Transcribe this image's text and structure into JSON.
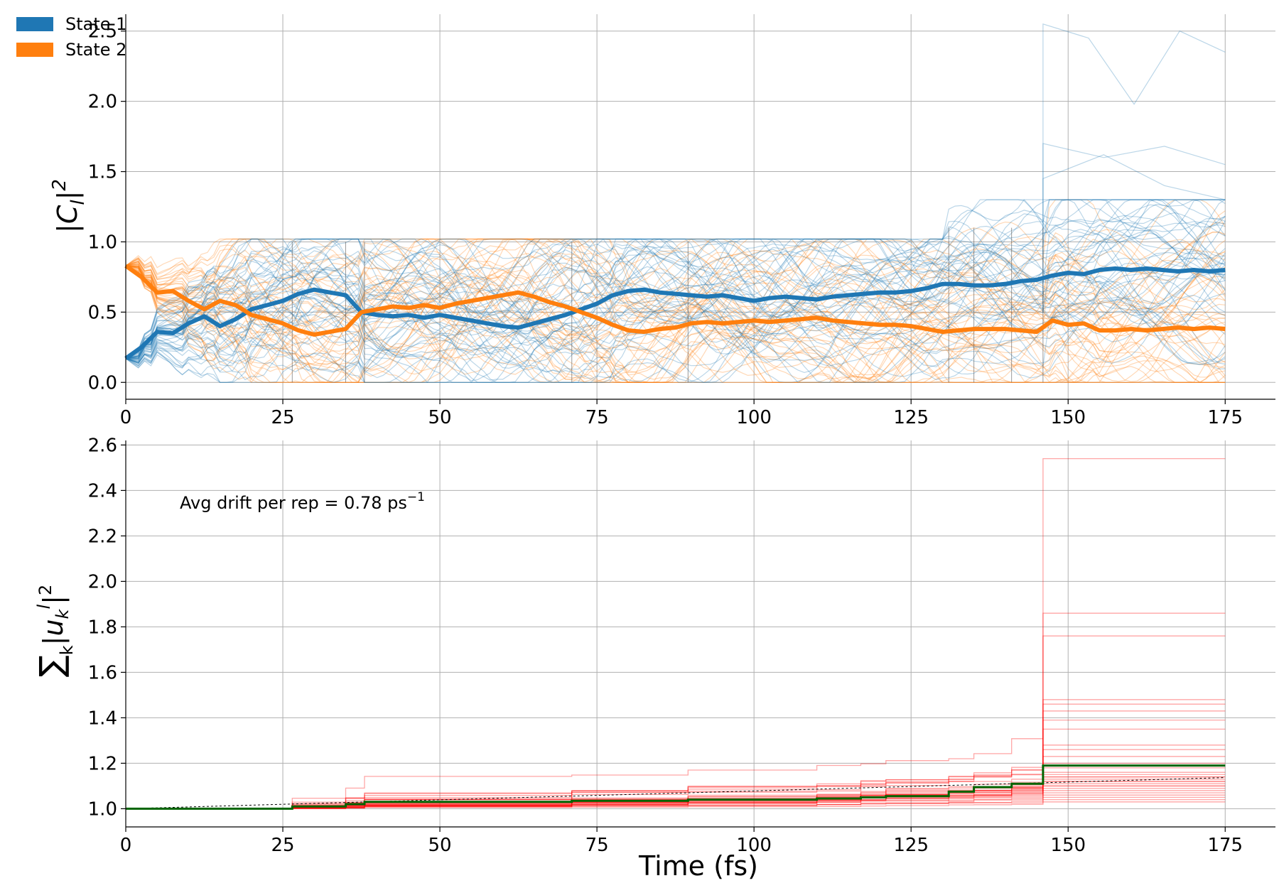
{
  "chart_data": [
    {
      "type": "line",
      "ylabel": "|C_l|^2",
      "xlim": [
        0,
        183
      ],
      "ylim": [
        -0.12,
        2.62
      ],
      "xticks": [
        0,
        25,
        50,
        75,
        100,
        125,
        150,
        175
      ],
      "yticks": [
        0.0,
        0.5,
        1.0,
        1.5,
        2.0,
        2.5
      ],
      "yticklabels": [
        "0.0",
        "0.5",
        "1.0",
        "1.5",
        "2.0",
        "2.5"
      ],
      "grid": true,
      "legend": {
        "placement": "top-left",
        "entries": [
          {
            "label": "State 1",
            "color": "#1f77b4"
          },
          {
            "label": "State 2",
            "color": "#ff7f0e"
          }
        ]
      },
      "x": [
        0,
        2.5,
        5,
        7.5,
        10,
        12.5,
        15,
        17.5,
        20,
        22.5,
        25,
        27.5,
        30,
        32.5,
        35,
        37.5,
        40,
        42.5,
        45,
        47.5,
        50,
        52.5,
        55,
        57.5,
        60,
        62.5,
        65,
        67.5,
        70,
        72.5,
        75,
        77.5,
        80,
        82.5,
        85,
        87.5,
        90,
        92.5,
        95,
        97.5,
        100,
        102.5,
        105,
        107.5,
        110,
        112.5,
        115,
        117.5,
        120,
        122.5,
        125,
        127.5,
        130,
        132.5,
        135,
        137.5,
        140,
        142.5,
        145,
        147.5,
        150,
        152.5,
        155,
        157.5,
        160,
        162.5,
        165,
        167.5,
        170,
        172.5,
        175
      ],
      "series": [
        {
          "name": "State 1",
          "color": "#1f77b4",
          "values": [
            0.17,
            0.25,
            0.36,
            0.35,
            0.42,
            0.47,
            0.4,
            0.45,
            0.52,
            0.55,
            0.58,
            0.63,
            0.66,
            0.64,
            0.62,
            0.5,
            0.48,
            0.47,
            0.48,
            0.46,
            0.48,
            0.46,
            0.44,
            0.42,
            0.4,
            0.39,
            0.42,
            0.45,
            0.48,
            0.52,
            0.56,
            0.62,
            0.65,
            0.66,
            0.64,
            0.63,
            0.62,
            0.61,
            0.62,
            0.6,
            0.58,
            0.6,
            0.61,
            0.6,
            0.59,
            0.61,
            0.62,
            0.63,
            0.64,
            0.64,
            0.65,
            0.67,
            0.7,
            0.7,
            0.69,
            0.69,
            0.7,
            0.72,
            0.73,
            0.76,
            0.78,
            0.77,
            0.8,
            0.81,
            0.8,
            0.81,
            0.8,
            0.79,
            0.8,
            0.79,
            0.8
          ]
        },
        {
          "name": "State 2",
          "color": "#ff7f0e",
          "values": [
            0.83,
            0.75,
            0.64,
            0.65,
            0.58,
            0.52,
            0.58,
            0.55,
            0.48,
            0.45,
            0.42,
            0.37,
            0.34,
            0.36,
            0.38,
            0.5,
            0.52,
            0.54,
            0.53,
            0.55,
            0.53,
            0.56,
            0.58,
            0.6,
            0.62,
            0.64,
            0.61,
            0.57,
            0.54,
            0.5,
            0.46,
            0.41,
            0.37,
            0.36,
            0.38,
            0.39,
            0.42,
            0.43,
            0.42,
            0.43,
            0.44,
            0.43,
            0.44,
            0.45,
            0.46,
            0.44,
            0.43,
            0.42,
            0.41,
            0.41,
            0.4,
            0.38,
            0.36,
            0.37,
            0.38,
            0.38,
            0.38,
            0.37,
            0.36,
            0.44,
            0.41,
            0.42,
            0.37,
            0.37,
            0.38,
            0.37,
            0.38,
            0.39,
            0.38,
            0.39,
            0.38
          ]
        }
      ]
    },
    {
      "type": "line",
      "xlabel": "Time (fs)",
      "ylabel": "∑_k |u_k^l|^2",
      "xlim": [
        0,
        183
      ],
      "ylim": [
        0.92,
        2.62
      ],
      "xticks": [
        0,
        25,
        50,
        75,
        100,
        125,
        150,
        175
      ],
      "yticks": [
        1.0,
        1.2,
        1.4,
        1.6,
        1.8,
        2.0,
        2.2,
        2.4,
        2.6
      ],
      "yticklabels": [
        "1.0",
        "1.2",
        "1.4",
        "1.6",
        "1.8",
        "2.0",
        "2.2",
        "2.4",
        "2.6"
      ],
      "grid": true,
      "annotation": {
        "text": "Avg drift per rep = 0.78 ps",
        "superscript": "−1"
      },
      "mean_series": {
        "color": "#006400",
        "points": [
          [
            0,
            1.0
          ],
          [
            26.5,
            1.0
          ],
          [
            26.5,
            1.01
          ],
          [
            35,
            1.01
          ],
          [
            35,
            1.02
          ],
          [
            38,
            1.02
          ],
          [
            38,
            1.03
          ],
          [
            71,
            1.03
          ],
          [
            71,
            1.035
          ],
          [
            89.5,
            1.035
          ],
          [
            89.5,
            1.04
          ],
          [
            110,
            1.04
          ],
          [
            110,
            1.045
          ],
          [
            117,
            1.045
          ],
          [
            117,
            1.05
          ],
          [
            121,
            1.05
          ],
          [
            121,
            1.055
          ],
          [
            131,
            1.055
          ],
          [
            131,
            1.075
          ],
          [
            135,
            1.075
          ],
          [
            135,
            1.095
          ],
          [
            141,
            1.095
          ],
          [
            141,
            1.11
          ],
          [
            146,
            1.11
          ],
          [
            146,
            1.19
          ],
          [
            175,
            1.19
          ]
        ]
      },
      "fit_line": {
        "color": "#000000",
        "points": [
          [
            0,
            1.0
          ],
          [
            175,
            1.137
          ]
        ]
      },
      "ensemble": {
        "color": "#ff0000",
        "jumps": [
          26.5,
          35,
          38,
          71,
          89.5,
          110,
          117,
          121,
          131,
          135,
          141,
          146
        ],
        "finals": [
          2.54,
          1.86,
          1.76,
          1.48,
          1.46,
          1.43,
          1.39,
          1.35,
          1.28,
          1.26,
          1.23,
          1.2,
          1.18,
          1.16,
          1.15,
          1.14,
          1.13,
          1.12,
          1.11,
          1.1,
          1.09,
          1.08,
          1.07,
          1.06,
          1.05,
          1.04,
          1.03,
          1.1,
          1.12,
          1.14
        ]
      }
    }
  ]
}
